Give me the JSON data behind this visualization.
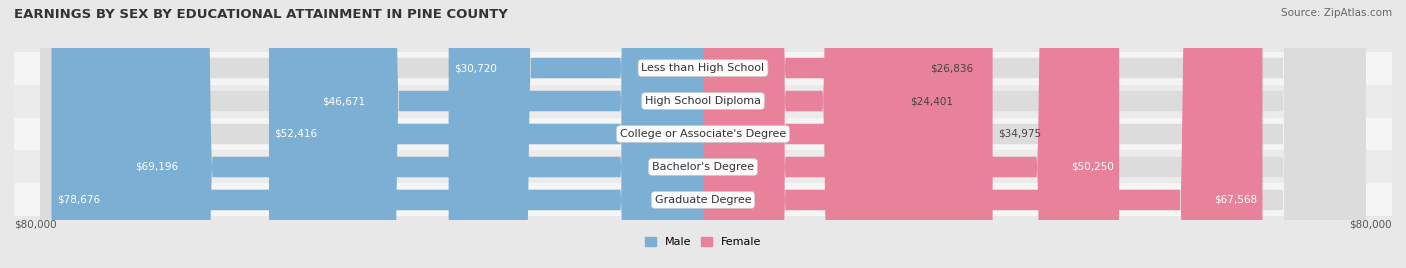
{
  "title": "EARNINGS BY SEX BY EDUCATIONAL ATTAINMENT IN PINE COUNTY",
  "source": "Source: ZipAtlas.com",
  "categories": [
    "Less than High School",
    "High School Diploma",
    "College or Associate's Degree",
    "Bachelor's Degree",
    "Graduate Degree"
  ],
  "male_values": [
    30720,
    46671,
    52416,
    69196,
    78676
  ],
  "female_values": [
    26836,
    24401,
    34975,
    50250,
    67568
  ],
  "male_color": "#7bafd4",
  "female_color": "#e8829a",
  "max_value": 80000,
  "background_color": "#e8e8e8",
  "row_bg_light": "#f5f5f5",
  "row_bg_dark": "#ebebeb",
  "bar_bg_color": "#dcdcdc",
  "title_fontsize": 9.5,
  "label_fontsize": 8,
  "value_fontsize": 7.5,
  "source_fontsize": 7.5,
  "axis_label": "$80,000"
}
